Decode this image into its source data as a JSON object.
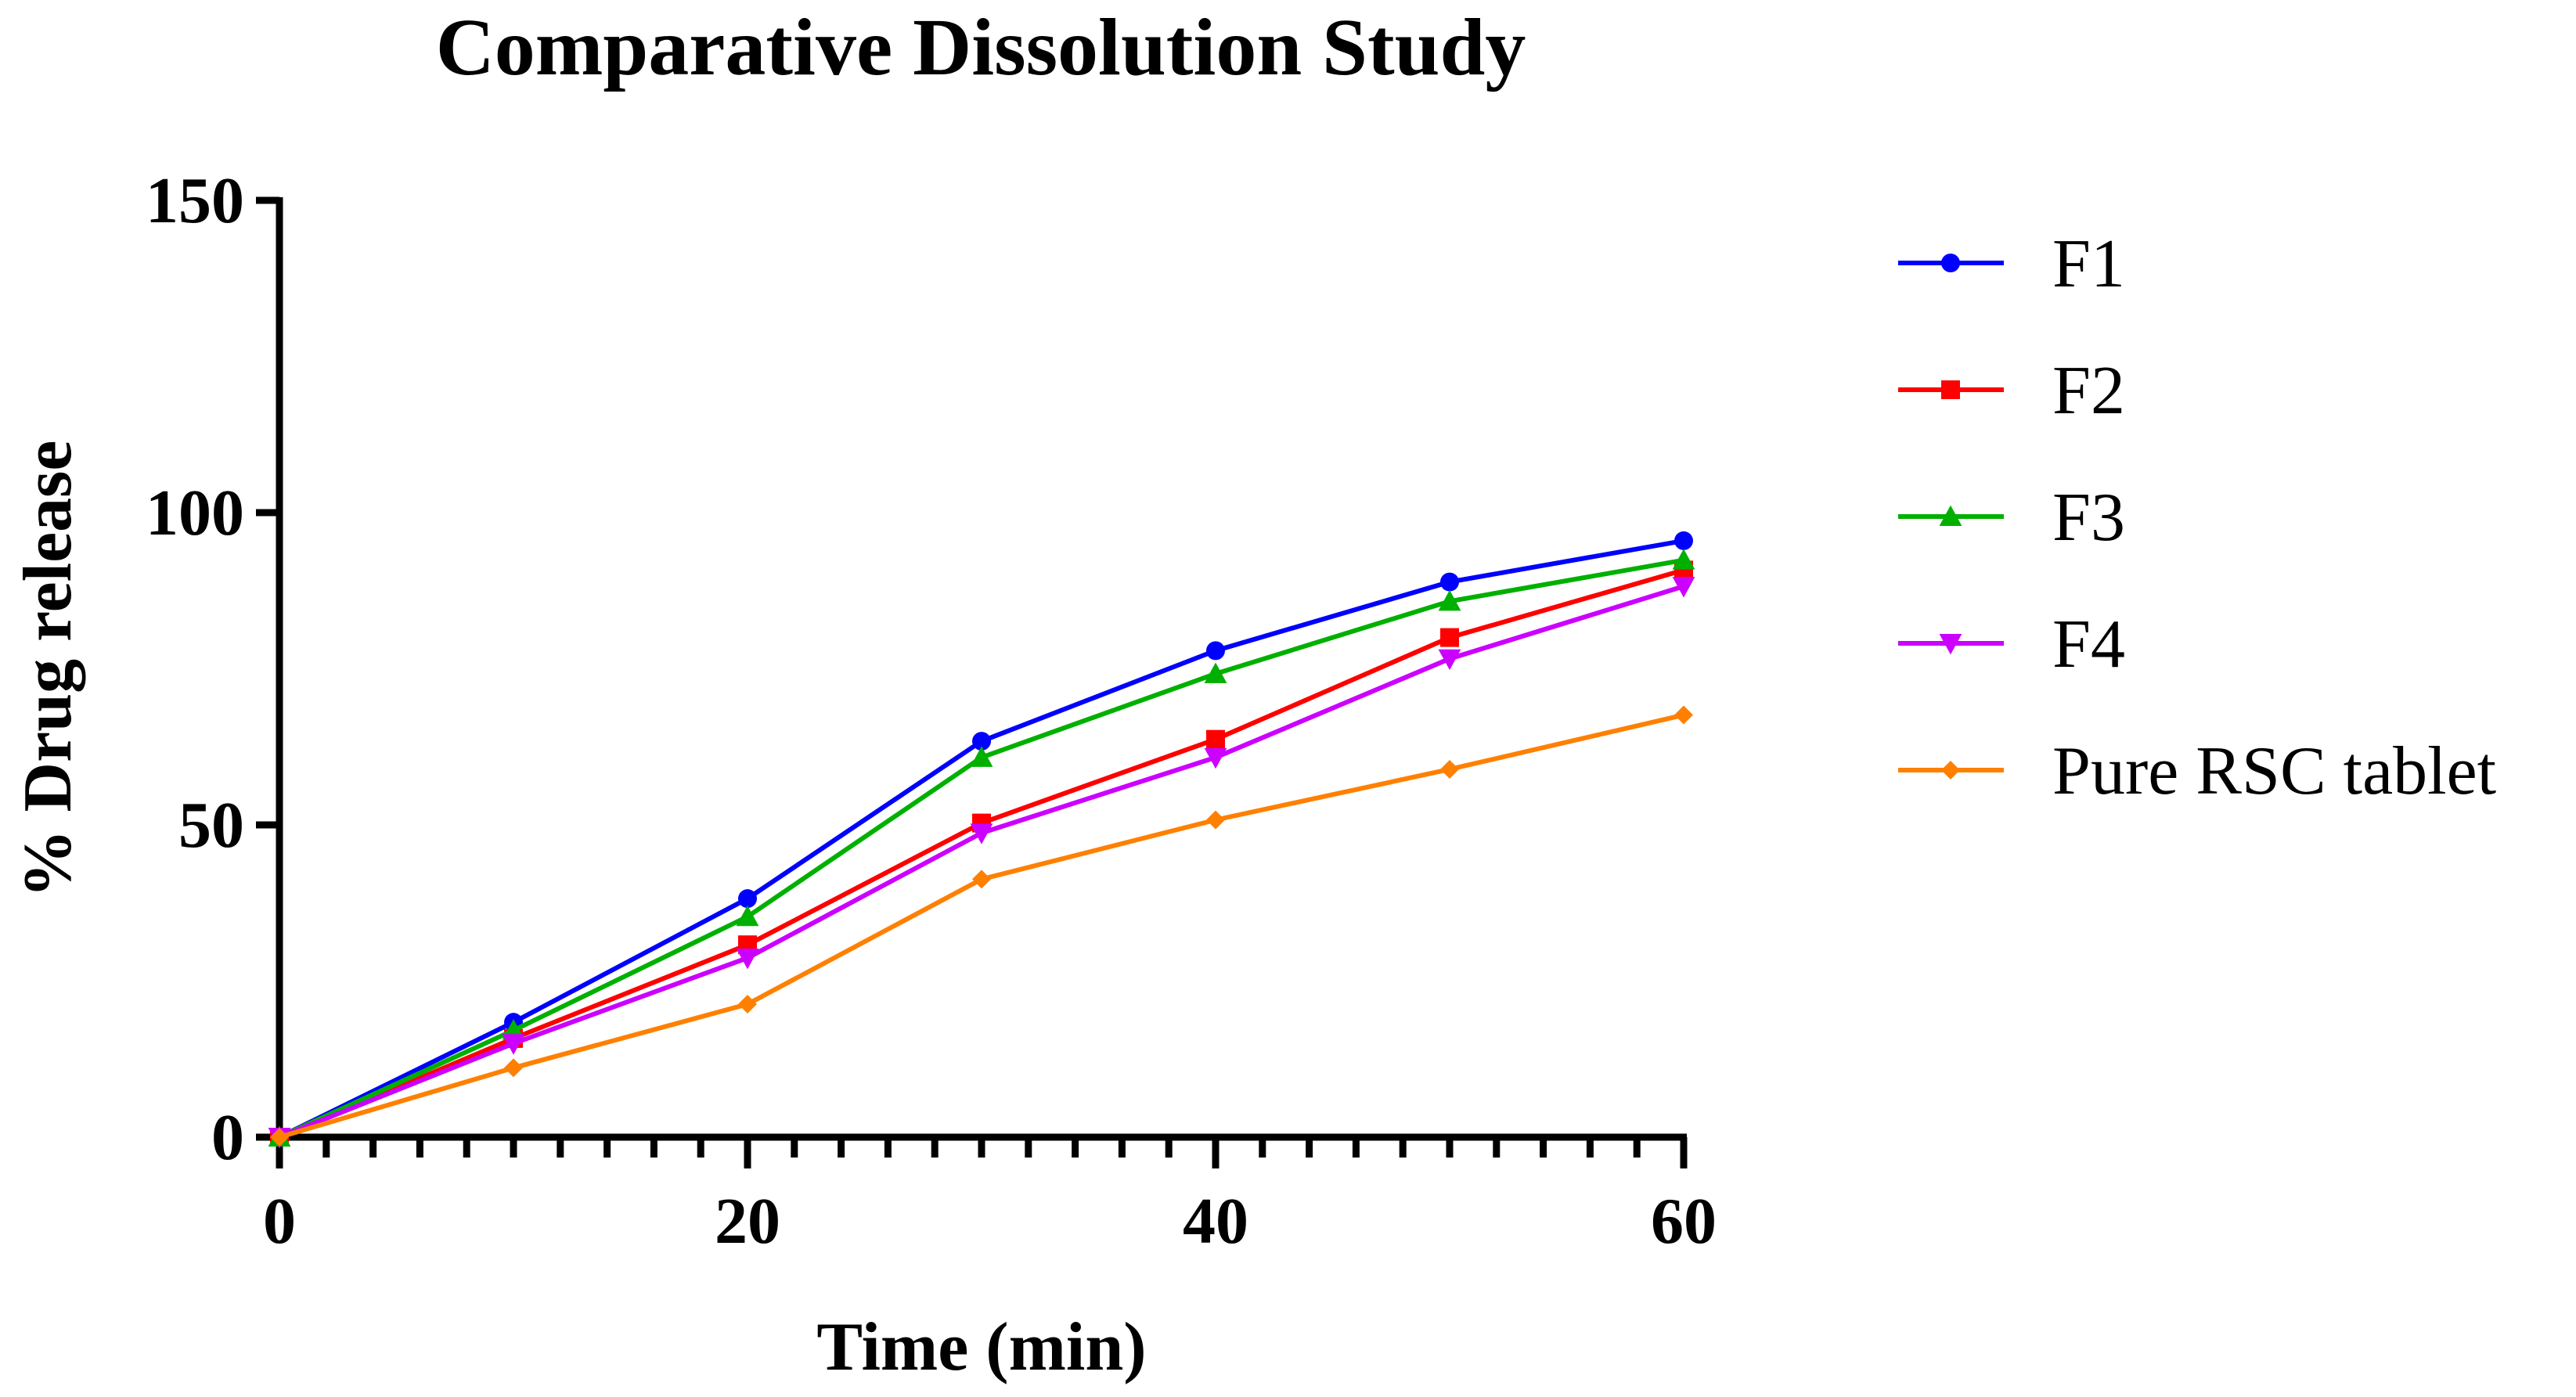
{
  "chart_data": {
    "type": "line",
    "title": "Comparative Dissolution Study",
    "xlabel": "Time (min)",
    "ylabel": "% Drug release",
    "xlim": [
      0,
      60
    ],
    "ylim": [
      0,
      150
    ],
    "xticks": [
      "0",
      "20",
      "40",
      "60"
    ],
    "yticks": [
      "0",
      "50",
      "100",
      "150"
    ],
    "x_minor_tick_step": 2,
    "grid": false,
    "legend_position": "right",
    "x": [
      0,
      10,
      20,
      30,
      40,
      50,
      60
    ],
    "series": [
      {
        "name": "F1",
        "color": "#0000ff",
        "marker": "circle",
        "values": [
          0,
          18.4,
          38.2,
          63.4,
          77.9,
          88.9,
          95.5
        ]
      },
      {
        "name": "F2",
        "color": "#ff0000",
        "marker": "square",
        "values": [
          0,
          15.8,
          30.8,
          50.3,
          63.7,
          80.0,
          90.8
        ]
      },
      {
        "name": "F3",
        "color": "#00b000",
        "marker": "triangle-up",
        "values": [
          0,
          17.1,
          35.3,
          60.8,
          74.2,
          85.8,
          92.4
        ]
      },
      {
        "name": "F4",
        "color": "#cc00ff",
        "marker": "triangle-down",
        "values": [
          0,
          15.0,
          28.7,
          48.7,
          60.8,
          76.6,
          88.2
        ]
      },
      {
        "name": "Pure RSC tablet",
        "color": "#ff8000",
        "marker": "diamond",
        "values": [
          0,
          11.1,
          21.3,
          41.3,
          50.8,
          58.9,
          67.6
        ]
      }
    ]
  }
}
